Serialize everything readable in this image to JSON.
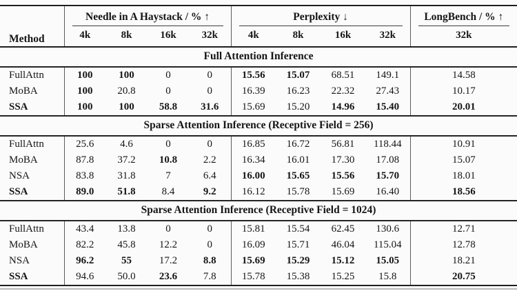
{
  "page": {
    "background_color": "#fbfbfb",
    "text_color": "#151515",
    "rule_color": "#1e1e1e",
    "divider_color": "#5a5a5a"
  },
  "table": {
    "header": {
      "method_label": "Method",
      "groups": [
        {
          "label": "Needle in A Haystack / % ↑",
          "cols": [
            "4k",
            "8k",
            "16k",
            "32k"
          ]
        },
        {
          "label": "Perplexity ↓",
          "cols": [
            "4k",
            "8k",
            "16k",
            "32k"
          ]
        },
        {
          "label": "LongBench / % ↑",
          "cols": [
            "32k"
          ]
        }
      ]
    },
    "sections": [
      {
        "title": "Full Attention Inference",
        "rows": [
          {
            "method": "FullAttn",
            "method_bold": false,
            "cells": [
              {
                "v": "100",
                "b": true
              },
              {
                "v": "100",
                "b": true
              },
              {
                "v": "0"
              },
              {
                "v": "0"
              },
              {
                "v": "15.56",
                "b": true
              },
              {
                "v": "15.07",
                "b": true
              },
              {
                "v": "68.51"
              },
              {
                "v": "149.1"
              },
              {
                "v": "14.58"
              }
            ]
          },
          {
            "method": "MoBA",
            "method_bold": false,
            "cells": [
              {
                "v": "100",
                "b": true
              },
              {
                "v": "20.8"
              },
              {
                "v": "0"
              },
              {
                "v": "0"
              },
              {
                "v": "16.39"
              },
              {
                "v": "16.23"
              },
              {
                "v": "22.32"
              },
              {
                "v": "27.43"
              },
              {
                "v": "10.17"
              }
            ]
          },
          {
            "method": "SSA",
            "method_bold": true,
            "cells": [
              {
                "v": "100",
                "b": true
              },
              {
                "v": "100",
                "b": true
              },
              {
                "v": "58.8",
                "b": true
              },
              {
                "v": "31.6",
                "b": true
              },
              {
                "v": "15.69"
              },
              {
                "v": "15.20"
              },
              {
                "v": "14.96",
                "b": true
              },
              {
                "v": "15.40",
                "b": true
              },
              {
                "v": "20.01",
                "b": true
              }
            ]
          }
        ]
      },
      {
        "title": "Sparse Attention Inference (Receptive Field = 256)",
        "rows": [
          {
            "method": "FullAttn",
            "method_bold": false,
            "cells": [
              {
                "v": "25.6"
              },
              {
                "v": "4.6"
              },
              {
                "v": "0"
              },
              {
                "v": "0"
              },
              {
                "v": "16.85"
              },
              {
                "v": "16.72"
              },
              {
                "v": "56.81"
              },
              {
                "v": "118.44"
              },
              {
                "v": "10.91"
              }
            ]
          },
          {
            "method": "MoBA",
            "method_bold": false,
            "cells": [
              {
                "v": "87.8"
              },
              {
                "v": "37.2"
              },
              {
                "v": "10.8",
                "b": true
              },
              {
                "v": "2.2"
              },
              {
                "v": "16.34"
              },
              {
                "v": "16.01"
              },
              {
                "v": "17.30"
              },
              {
                "v": "17.08"
              },
              {
                "v": "15.07"
              }
            ]
          },
          {
            "method": "NSA",
            "method_bold": false,
            "cells": [
              {
                "v": "83.8"
              },
              {
                "v": "31.8"
              },
              {
                "v": "7"
              },
              {
                "v": "6.4"
              },
              {
                "v": "16.00",
                "b": true
              },
              {
                "v": "15.65",
                "b": true
              },
              {
                "v": "15.56",
                "b": true
              },
              {
                "v": "15.70",
                "b": true
              },
              {
                "v": "18.01"
              }
            ]
          },
          {
            "method": "SSA",
            "method_bold": true,
            "cells": [
              {
                "v": "89.0",
                "b": true
              },
              {
                "v": "51.8",
                "b": true
              },
              {
                "v": "8.4"
              },
              {
                "v": "9.2",
                "b": true
              },
              {
                "v": "16.12"
              },
              {
                "v": "15.78"
              },
              {
                "v": "15.69"
              },
              {
                "v": "16.40"
              },
              {
                "v": "18.56",
                "b": true
              }
            ]
          }
        ]
      },
      {
        "title": "Sparse Attention Inference (Receptive Field = 1024)",
        "rows": [
          {
            "method": "FullAttn",
            "method_bold": false,
            "cells": [
              {
                "v": "43.4"
              },
              {
                "v": "13.8"
              },
              {
                "v": "0"
              },
              {
                "v": "0"
              },
              {
                "v": "15.81"
              },
              {
                "v": "15.54"
              },
              {
                "v": "62.45"
              },
              {
                "v": "130.6"
              },
              {
                "v": "12.71"
              }
            ]
          },
          {
            "method": "MoBA",
            "method_bold": false,
            "cells": [
              {
                "v": "82.2"
              },
              {
                "v": "45.8"
              },
              {
                "v": "12.2"
              },
              {
                "v": "0"
              },
              {
                "v": "16.09"
              },
              {
                "v": "15.71"
              },
              {
                "v": "46.04"
              },
              {
                "v": "115.04"
              },
              {
                "v": "12.78"
              }
            ]
          },
          {
            "method": "NSA",
            "method_bold": false,
            "cells": [
              {
                "v": "96.2",
                "b": true
              },
              {
                "v": "55",
                "b": true
              },
              {
                "v": "17.2"
              },
              {
                "v": "8.8",
                "b": true
              },
              {
                "v": "15.69",
                "b": true
              },
              {
                "v": "15.29",
                "b": true
              },
              {
                "v": "15.12",
                "b": true
              },
              {
                "v": "15.05",
                "b": true
              },
              {
                "v": "18.21"
              }
            ]
          },
          {
            "method": "SSA",
            "method_bold": true,
            "cells": [
              {
                "v": "94.6"
              },
              {
                "v": "50.0"
              },
              {
                "v": "23.6",
                "b": true
              },
              {
                "v": "7.8"
              },
              {
                "v": "15.78"
              },
              {
                "v": "15.38"
              },
              {
                "v": "15.25"
              },
              {
                "v": "15.8"
              },
              {
                "v": "20.75",
                "b": true
              }
            ]
          }
        ]
      }
    ]
  }
}
